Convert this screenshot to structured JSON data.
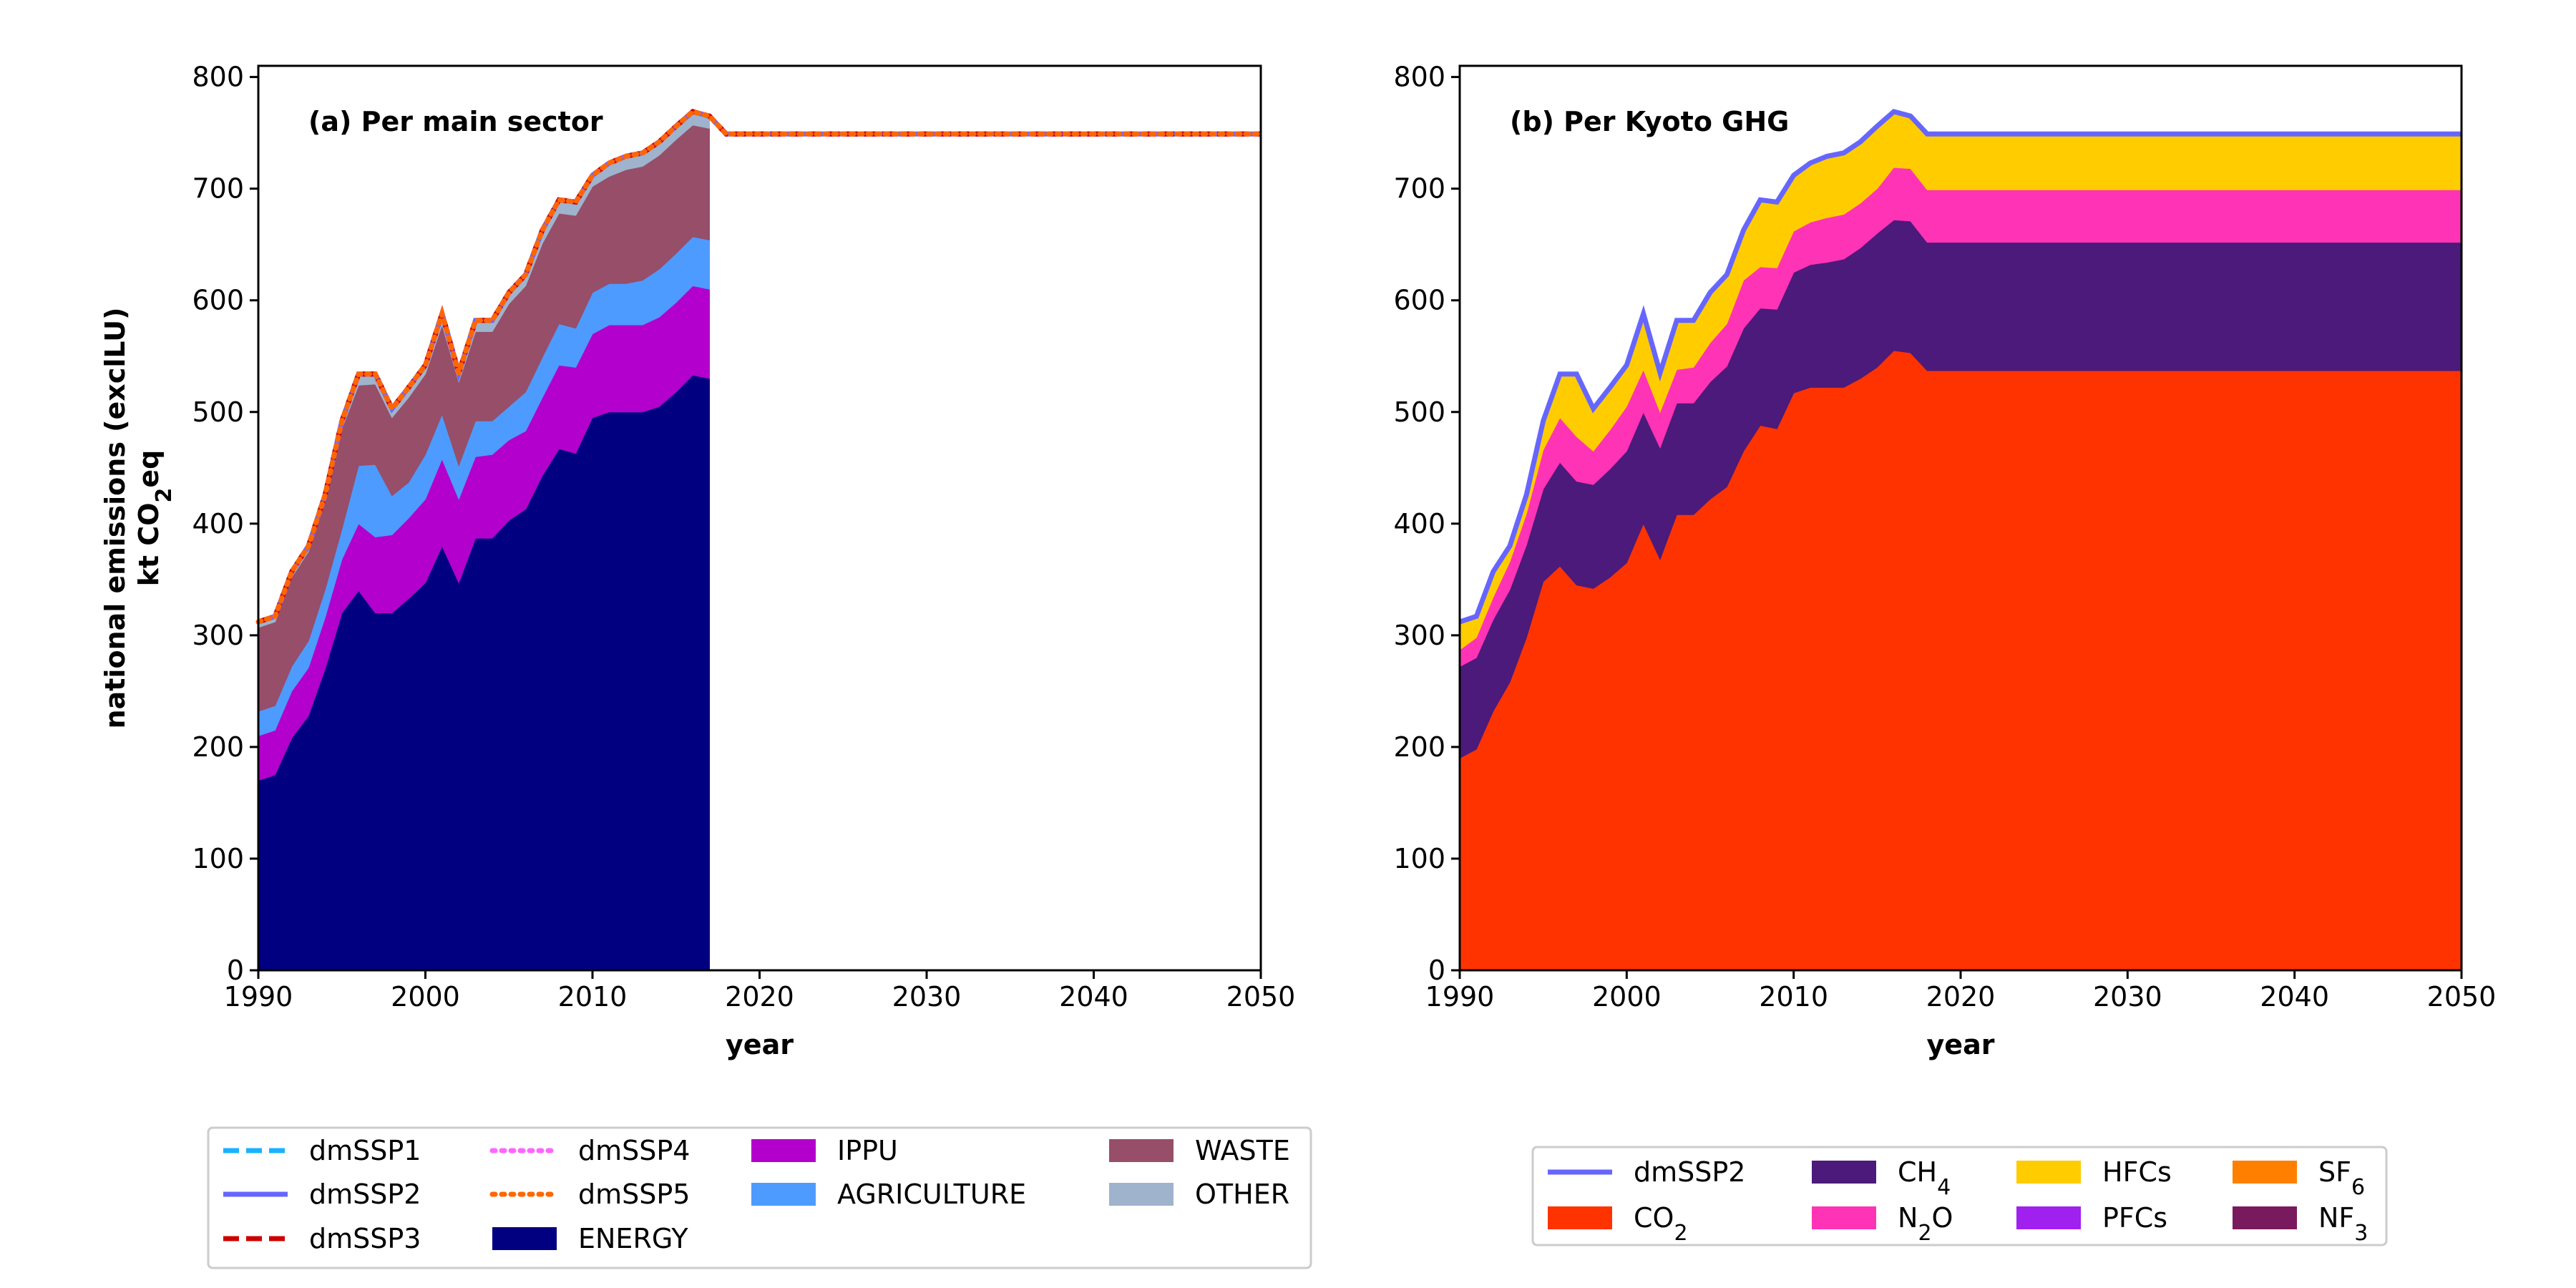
{
  "ylabel_line1": "national emissions (exclLU)",
  "ylabel_line2_pre": "kt CO",
  "ylabel_line2_sub": "2",
  "ylabel_line2_post": "eq",
  "chart_data": [
    {
      "type": "area",
      "title": "(a) Per main sector",
      "xlabel": "year",
      "ylabel": "national emissions (exclLU) kt CO2eq",
      "xlim": [
        1990,
        2050
      ],
      "ylim": [
        0,
        810
      ],
      "xticks": [
        "1990",
        "2000",
        "2010",
        "2020",
        "2030",
        "2040",
        "2050"
      ],
      "yticks": [
        "0",
        "100",
        "200",
        "300",
        "400",
        "500",
        "600",
        "700",
        "800"
      ],
      "grid": false,
      "legend_position": "below",
      "x": [
        1990,
        1991,
        1992,
        1993,
        1994,
        1995,
        1996,
        1997,
        1998,
        1999,
        2000,
        2001,
        2002,
        2003,
        2004,
        2005,
        2006,
        2007,
        2008,
        2009,
        2010,
        2011,
        2012,
        2013,
        2014,
        2015,
        2016,
        2017
      ],
      "series": [
        {
          "name": "ENERGY",
          "color": "#000080",
          "values": [
            170,
            175,
            208,
            228,
            270,
            320,
            340,
            320,
            320,
            333,
            347,
            380,
            347,
            387,
            387,
            403,
            413,
            443,
            467,
            463,
            495,
            500,
            500,
            500,
            505,
            518,
            533,
            530
          ]
        },
        {
          "name": "IPPU",
          "color": "#b300cc",
          "values": [
            40,
            40,
            42,
            43,
            46,
            48,
            60,
            68,
            70,
            72,
            75,
            78,
            75,
            73,
            75,
            72,
            70,
            70,
            75,
            77,
            75,
            78,
            78,
            78,
            80,
            80,
            80,
            80
          ]
        },
        {
          "name": "AGRICULTURE",
          "color": "#4d9bff",
          "values": [
            22,
            22,
            22,
            24,
            25,
            27,
            52,
            65,
            35,
            32,
            40,
            40,
            30,
            32,
            30,
            30,
            35,
            36,
            37,
            35,
            37,
            37,
            37,
            40,
            43,
            44,
            44,
            44
          ]
        },
        {
          "name": "WASTE",
          "color": "#964e69",
          "values": [
            75,
            75,
            80,
            80,
            80,
            90,
            72,
            72,
            70,
            76,
            72,
            80,
            75,
            80,
            80,
            92,
            95,
            102,
            99,
            101,
            95,
            96,
            102,
            102,
            102,
            102,
            100,
            100
          ]
        },
        {
          "name": "OTHER",
          "color": "#9fb3cc",
          "values": [
            5,
            5,
            5,
            5,
            5,
            7,
            10,
            9,
            8,
            9,
            8,
            10,
            8,
            10,
            10,
            10,
            10,
            12,
            12,
            12,
            10,
            12,
            12,
            12,
            12,
            12,
            12,
            11
          ]
        }
      ],
      "scenarios": [
        {
          "name": "dmSSP1",
          "color": "#1ab2ff",
          "style": "dashed"
        },
        {
          "name": "dmSSP2",
          "color": "#6666ff",
          "style": "solid"
        },
        {
          "name": "dmSSP3",
          "color": "#cc0000",
          "style": "dashed"
        },
        {
          "name": "dmSSP4",
          "color": "#ff66ff",
          "style": "dotted"
        },
        {
          "name": "dmSSP5",
          "color": "#ff6600",
          "style": "dotted"
        }
      ],
      "scenario_total": {
        "x": [
          1990,
          1991,
          1992,
          1993,
          1994,
          1995,
          1996,
          1997,
          1998,
          1999,
          2000,
          2001,
          2002,
          2003,
          2004,
          2005,
          2006,
          2007,
          2008,
          2009,
          2010,
          2011,
          2012,
          2013,
          2014,
          2015,
          2016,
          2017,
          2018,
          2050
        ],
        "values": [
          312,
          317,
          357,
          380,
          426,
          492,
          534,
          534,
          503,
          522,
          542,
          588,
          535,
          582,
          582,
          607,
          623,
          663,
          690,
          688,
          712,
          723,
          729,
          732,
          742,
          756,
          769,
          765,
          749,
          749
        ]
      },
      "legend": {
        "columns": [
          [
            "dmSSP1",
            "dmSSP2",
            "dmSSP3"
          ],
          [
            "dmSSP4",
            "dmSSP5",
            "ENERGY"
          ],
          [
            "IPPU",
            "AGRICULTURE"
          ],
          [
            "WASTE",
            "OTHER"
          ]
        ]
      }
    },
    {
      "type": "area",
      "title": "(b) Per Kyoto GHG",
      "xlabel": "year",
      "xlim": [
        1990,
        2050
      ],
      "ylim": [
        0,
        810
      ],
      "xticks": [
        "1990",
        "2000",
        "2010",
        "2020",
        "2030",
        "2040",
        "2050"
      ],
      "yticks": [
        "0",
        "100",
        "200",
        "300",
        "400",
        "500",
        "600",
        "700",
        "800"
      ],
      "grid": false,
      "legend_position": "below",
      "x": [
        1990,
        1991,
        1992,
        1993,
        1994,
        1995,
        1996,
        1997,
        1998,
        1999,
        2000,
        2001,
        2002,
        2003,
        2004,
        2005,
        2006,
        2007,
        2008,
        2009,
        2010,
        2011,
        2012,
        2013,
        2014,
        2015,
        2016,
        2017,
        2018,
        2050
      ],
      "series": [
        {
          "name": "CO2",
          "label_base": "CO",
          "label_sub": "2",
          "color": "#ff3300",
          "values": [
            190,
            198,
            232,
            258,
            298,
            348,
            362,
            345,
            342,
            352,
            365,
            400,
            368,
            408,
            408,
            422,
            433,
            465,
            488,
            485,
            517,
            522,
            522,
            522,
            530,
            540,
            555,
            553,
            537,
            537
          ]
        },
        {
          "name": "CH4",
          "label_base": "CH",
          "label_sub": "4",
          "color": "#4b1a7a",
          "values": [
            82,
            82,
            82,
            83,
            83,
            83,
            93,
            93,
            93,
            97,
            100,
            100,
            100,
            100,
            100,
            105,
            108,
            110,
            105,
            107,
            108,
            110,
            112,
            115,
            117,
            120,
            117,
            118,
            115,
            115
          ]
        },
        {
          "name": "N2O",
          "label_base": "N",
          "label_sub": "2",
          "label_post": "O",
          "color": "#ff33b5",
          "values": [
            15,
            18,
            20,
            25,
            28,
            35,
            40,
            40,
            30,
            35,
            40,
            38,
            32,
            30,
            32,
            35,
            38,
            43,
            37,
            37,
            37,
            38,
            40,
            40,
            40,
            40,
            47,
            47,
            47,
            47
          ]
        },
        {
          "name": "HFCs",
          "color": "#ffcc00",
          "values": [
            25,
            19,
            23,
            14,
            17,
            26,
            39,
            56,
            38,
            38,
            37,
            50,
            35,
            44,
            42,
            45,
            44,
            45,
            60,
            59,
            50,
            53,
            55,
            55,
            55,
            56,
            50,
            47,
            50,
            50
          ]
        },
        {
          "name": "PFCs",
          "color": "#a020f0",
          "values": [
            0,
            0,
            0,
            0,
            0,
            0,
            0,
            0,
            0,
            0,
            0,
            0,
            0,
            0,
            0,
            0,
            0,
            0,
            0,
            0,
            0,
            0,
            0,
            0,
            0,
            0,
            0,
            0,
            0,
            0
          ]
        },
        {
          "name": "SF6",
          "label_base": "SF",
          "label_sub": "6",
          "color": "#ff8000",
          "values": [
            0,
            0,
            0,
            0,
            0,
            0,
            0,
            0,
            0,
            0,
            0,
            0,
            0,
            0,
            0,
            0,
            0,
            0,
            0,
            0,
            0,
            0,
            0,
            0,
            0,
            0,
            0,
            0,
            0,
            0
          ]
        },
        {
          "name": "NF3",
          "label_base": "NF",
          "label_sub": "3",
          "color": "#7a1a5e",
          "values": [
            0,
            0,
            0,
            0,
            0,
            0,
            0,
            0,
            0,
            0,
            0,
            0,
            0,
            0,
            0,
            0,
            0,
            0,
            0,
            0,
            0,
            0,
            0,
            0,
            0,
            0,
            0,
            0,
            0,
            0
          ]
        }
      ],
      "total_line": {
        "name": "dmSSP2",
        "color": "#6666ff"
      },
      "legend": {
        "columns": [
          [
            "dmSSP2",
            "CO2"
          ],
          [
            "CH4",
            "N2O"
          ],
          [
            "HFCs",
            "PFCs"
          ],
          [
            "SF6",
            "NF3"
          ]
        ]
      }
    }
  ]
}
